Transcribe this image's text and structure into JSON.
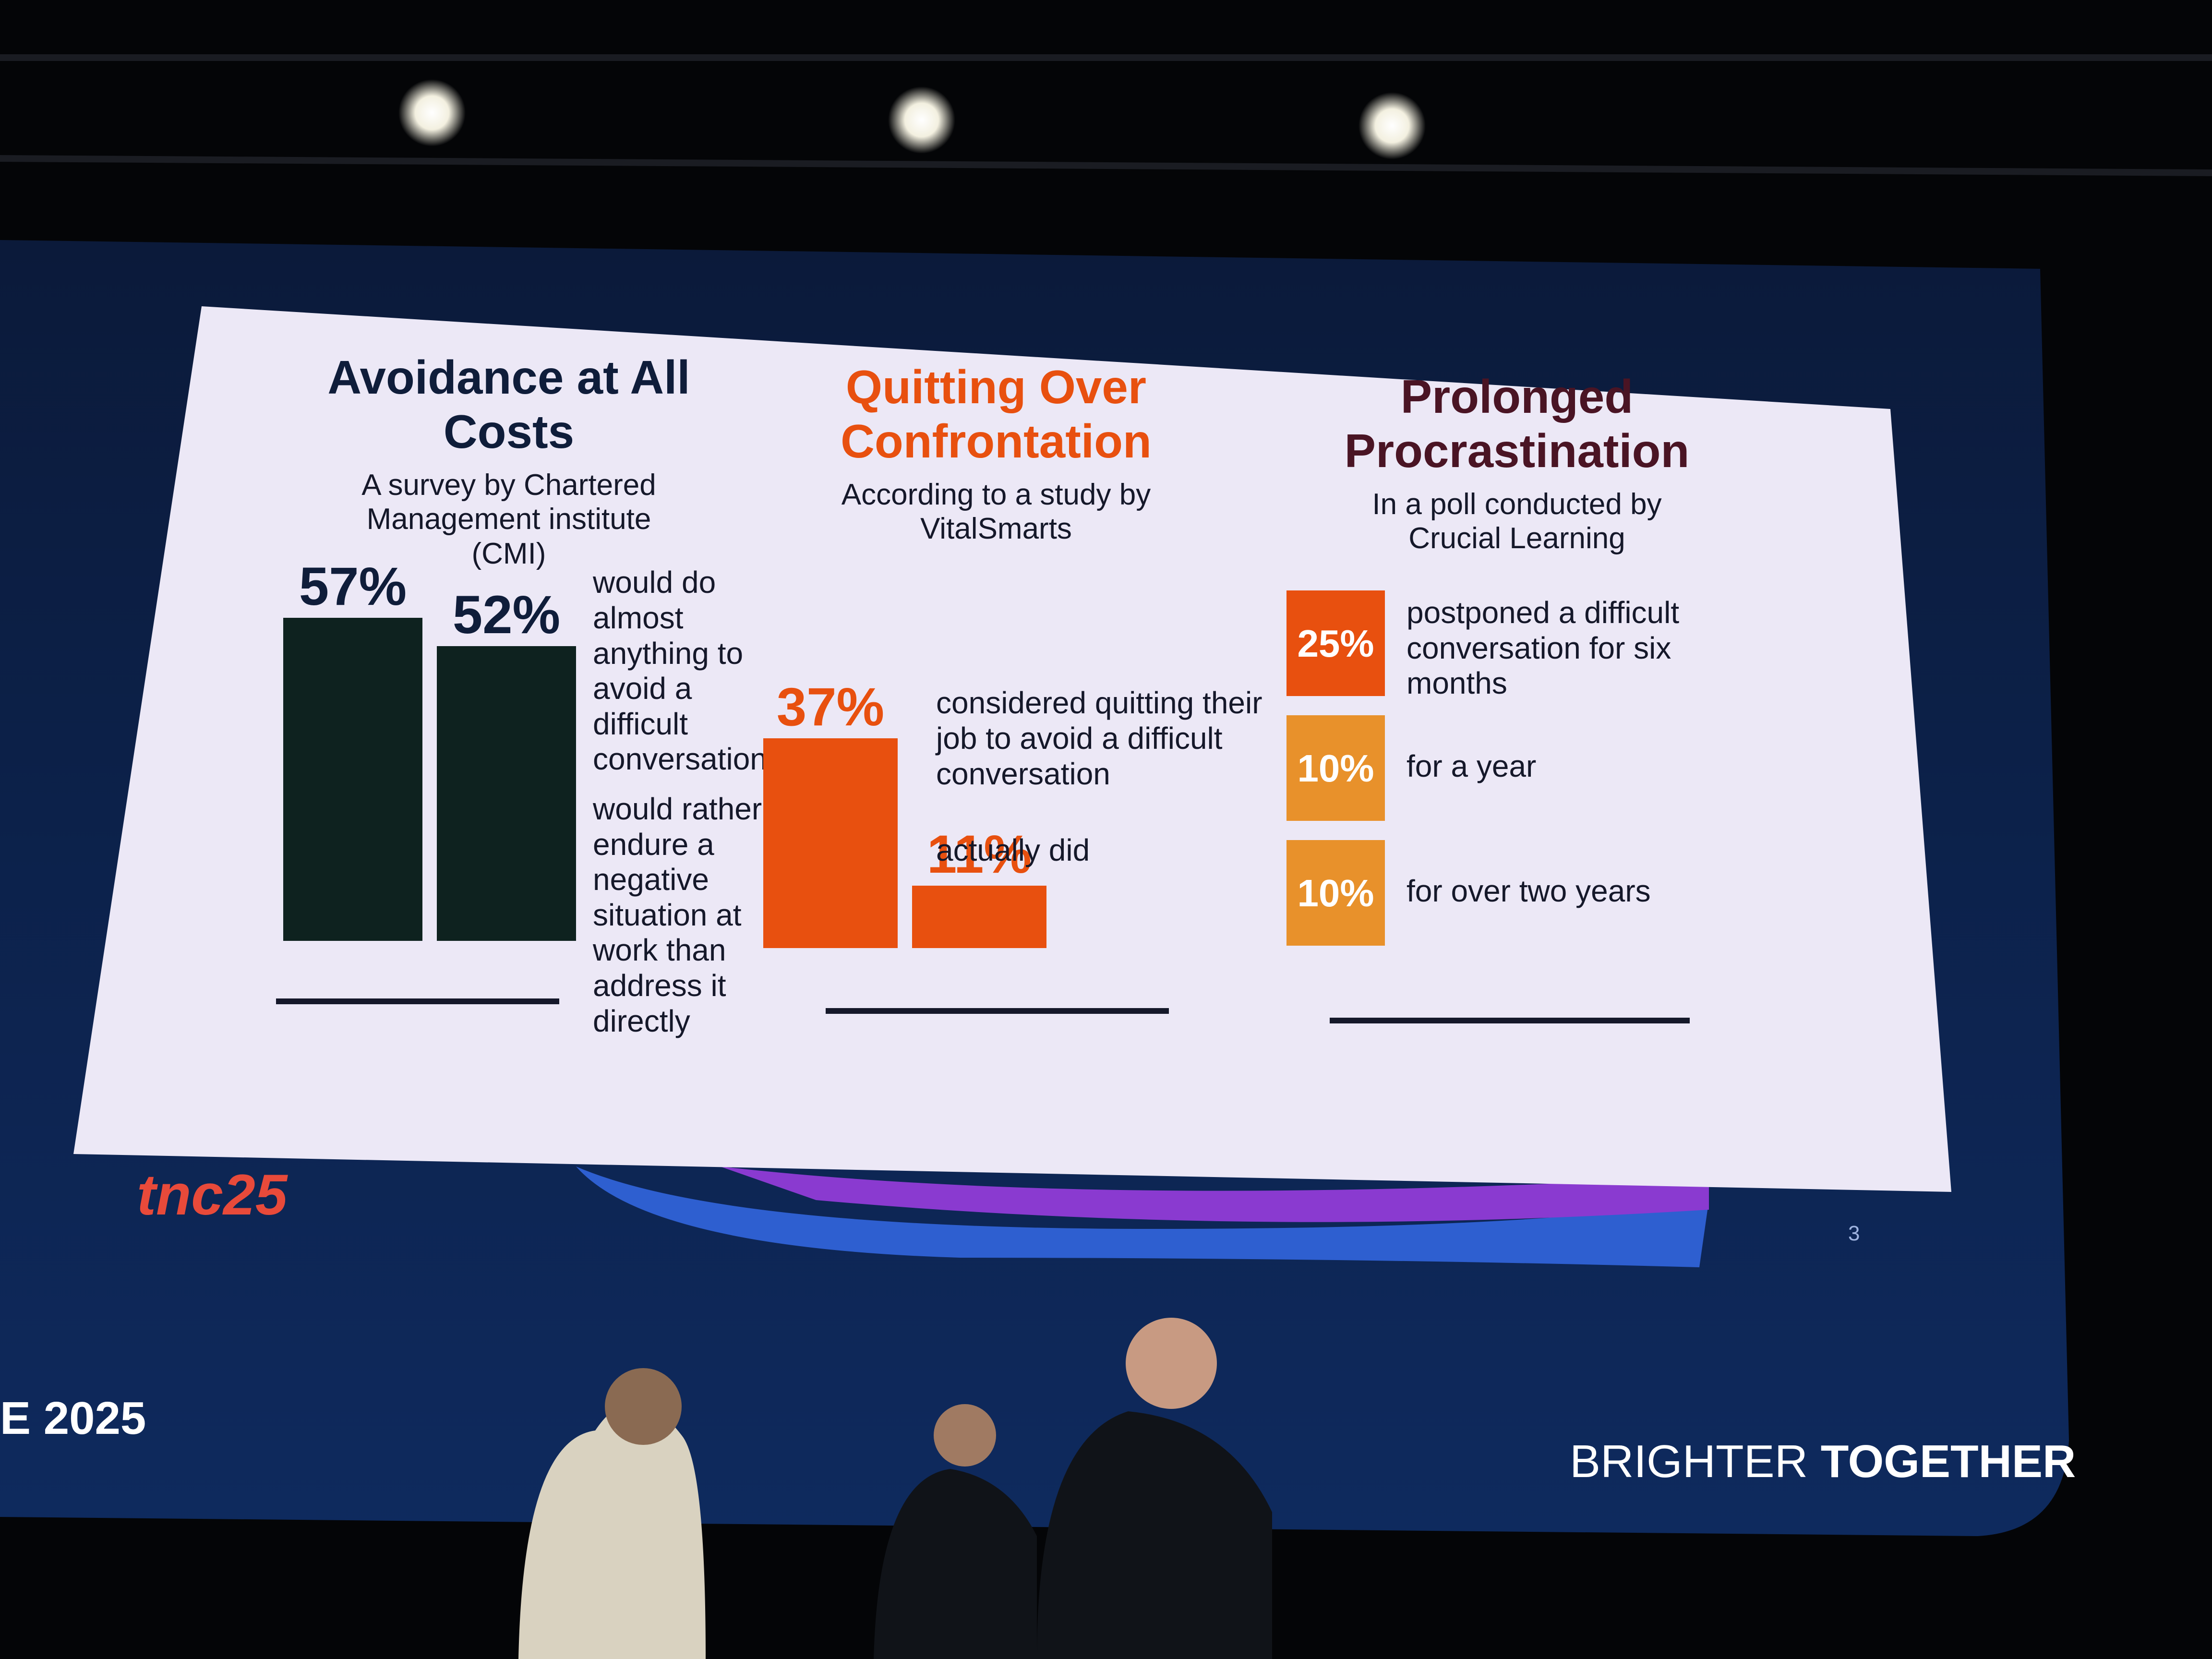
{
  "chart_data": [
    {
      "type": "bar",
      "title": "Avoidance at All Costs",
      "subtitle": "A survey by Chartered Management institute (CMI)",
      "categories": [
        "would do almost anything to avoid a difficult conversation",
        "would rather endure a negative situation at work than address it directly"
      ],
      "values": [
        57,
        52
      ],
      "value_labels": [
        "57%",
        "52%"
      ],
      "colors": [
        "#0e221f",
        "#0e221f"
      ]
    },
    {
      "type": "bar",
      "title": "Quitting Over Confrontation",
      "subtitle": "According to a study by VitalSmarts",
      "categories": [
        "considered quitting their job to avoid a difficult conversation",
        "actually did"
      ],
      "values": [
        37,
        11
      ],
      "value_labels": [
        "37%",
        "11%"
      ],
      "colors": [
        "#e8500f",
        "#e8500f"
      ]
    },
    {
      "type": "tile",
      "title": "Prolonged Procrastination",
      "subtitle": "In a poll conducted by Crucial Learning",
      "categories": [
        "postponed a difficult conversation for six months",
        "for a year",
        "for over two years"
      ],
      "values": [
        25,
        10,
        10
      ],
      "value_labels": [
        "25%",
        "10%",
        "10%"
      ],
      "colors": [
        "#e8500f",
        "#e8912b",
        "#e8912b"
      ]
    }
  ],
  "slide": {
    "logo": "tnc25",
    "page_number": "3"
  },
  "stage": {
    "event_fragment": "E 2025",
    "tagline_light": "BRIGHTER",
    "tagline_bold": "TOGETHER"
  }
}
